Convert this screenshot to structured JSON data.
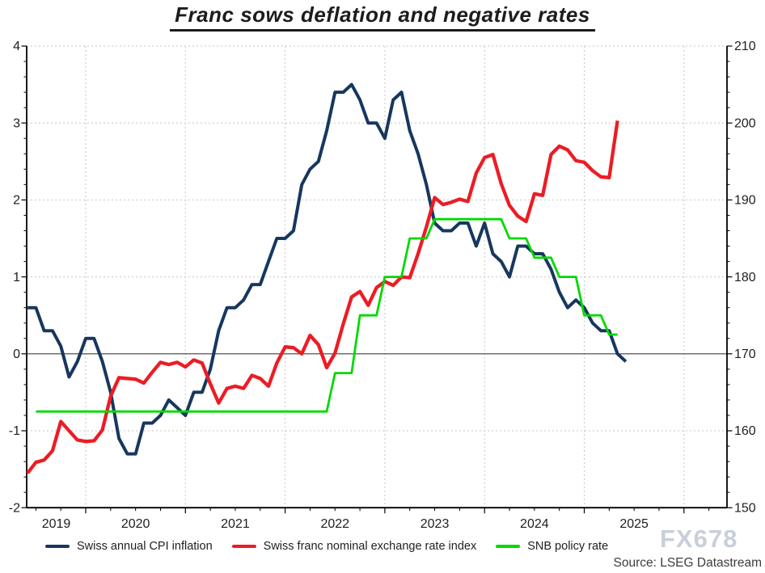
{
  "watermark": "FX678",
  "source": "Source: LSEG Datastream",
  "colors": {
    "cpi_blue": "#17375E",
    "franc_red": "#EC1C24",
    "snb_green": "#00D900",
    "gridline": "#c6c6c6",
    "axis": "#000000",
    "zero_line": "#3f3f3f",
    "tick_label": "#1f1f1f"
  },
  "chart_data": {
    "type": "line",
    "title": "Franc sows deflation and negative rates",
    "x_axis": {
      "year_labels": [
        "2019",
        "2020",
        "2021",
        "2022",
        "2023",
        "2024",
        "2025"
      ],
      "gridline_years": [
        2020,
        2021,
        2022,
        2023,
        2024,
        2025,
        2026
      ],
      "minor_tick_step_years": 0.25,
      "range_start": 2019.41,
      "range_end": 2026.43
    },
    "y_axis_left": {
      "min": -2,
      "max": 4,
      "major_ticks": [
        4,
        3,
        2,
        1,
        0,
        -1,
        -2
      ],
      "minor_step": 0.2,
      "zero_line": true
    },
    "y_axis_right": {
      "min": 150,
      "max": 210,
      "major_ticks": [
        210,
        200,
        190,
        180,
        170,
        160,
        150
      ],
      "minor_step": 2
    },
    "grid": "dashed",
    "legend_position": "bottom",
    "series": [
      {
        "name": "Swiss annual CPI inflation",
        "axis": "left",
        "start": [
          2019,
          5
        ],
        "values": [
          0.6,
          0.6,
          0.3,
          0.3,
          0.1,
          -0.3,
          -0.1,
          0.2,
          0.2,
          -0.1,
          -0.5,
          -1.1,
          -1.3,
          -1.3,
          -0.9,
          -0.9,
          -0.8,
          -0.6,
          -0.7,
          -0.8,
          -0.5,
          -0.5,
          -0.2,
          0.3,
          0.6,
          0.6,
          0.7,
          0.9,
          0.9,
          1.2,
          1.5,
          1.5,
          1.6,
          2.2,
          2.4,
          2.5,
          2.9,
          3.4,
          3.4,
          3.5,
          3.3,
          3.0,
          3.0,
          2.8,
          3.3,
          3.4,
          2.9,
          2.6,
          2.2,
          1.7,
          1.6,
          1.6,
          1.7,
          1.7,
          1.4,
          1.7,
          1.3,
          1.2,
          1.0,
          1.4,
          1.4,
          1.3,
          1.3,
          1.1,
          0.8,
          0.6,
          0.7,
          0.6,
          0.4,
          0.3,
          0.3,
          0.0,
          -0.1
        ]
      },
      {
        "name": "Swiss franc nominal exchange rate index",
        "axis": "right",
        "start": [
          2019,
          5
        ],
        "values": [
          154.5,
          155.9,
          156.2,
          157.4,
          161.2,
          160.0,
          158.8,
          158.6,
          158.7,
          160.1,
          164.5,
          166.9,
          166.8,
          166.7,
          166.2,
          167.6,
          168.9,
          168.6,
          168.9,
          168.3,
          169.2,
          168.8,
          166.1,
          163.6,
          165.5,
          165.8,
          165.5,
          167.2,
          166.8,
          165.8,
          168.8,
          170.9,
          170.8,
          170.0,
          172.4,
          171.2,
          168.2,
          170.1,
          173.9,
          177.4,
          178.1,
          176.3,
          178.6,
          179.4,
          178.9,
          180.0,
          179.9,
          183.0,
          186.5,
          190.3,
          189.4,
          189.7,
          190.1,
          189.8,
          193.5,
          195.5,
          195.9,
          192.1,
          189.3,
          187.9,
          187.2,
          190.8,
          190.6,
          195.9,
          197.0,
          196.5,
          195.1,
          194.9,
          193.8,
          193.0,
          192.9,
          200.3
        ]
      },
      {
        "name": "SNB policy rate",
        "axis": "left",
        "start": [
          2019,
          6
        ],
        "values": [
          -0.75,
          -0.75,
          -0.75,
          -0.75,
          -0.75,
          -0.75,
          -0.75,
          -0.75,
          -0.75,
          -0.75,
          -0.75,
          -0.75,
          -0.75,
          -0.75,
          -0.75,
          -0.75,
          -0.75,
          -0.75,
          -0.75,
          -0.75,
          -0.75,
          -0.75,
          -0.75,
          -0.75,
          -0.75,
          -0.75,
          -0.75,
          -0.75,
          -0.75,
          -0.75,
          -0.75,
          -0.75,
          -0.75,
          -0.75,
          -0.75,
          -0.75,
          -0.25,
          -0.25,
          -0.25,
          0.5,
          0.5,
          0.5,
          1.0,
          1.0,
          1.0,
          1.5,
          1.5,
          1.5,
          1.75,
          1.75,
          1.75,
          1.75,
          1.75,
          1.75,
          1.75,
          1.75,
          1.75,
          1.5,
          1.5,
          1.5,
          1.25,
          1.25,
          1.25,
          1.0,
          1.0,
          1.0,
          0.5,
          0.5,
          0.5,
          0.25,
          0.25
        ]
      }
    ]
  }
}
